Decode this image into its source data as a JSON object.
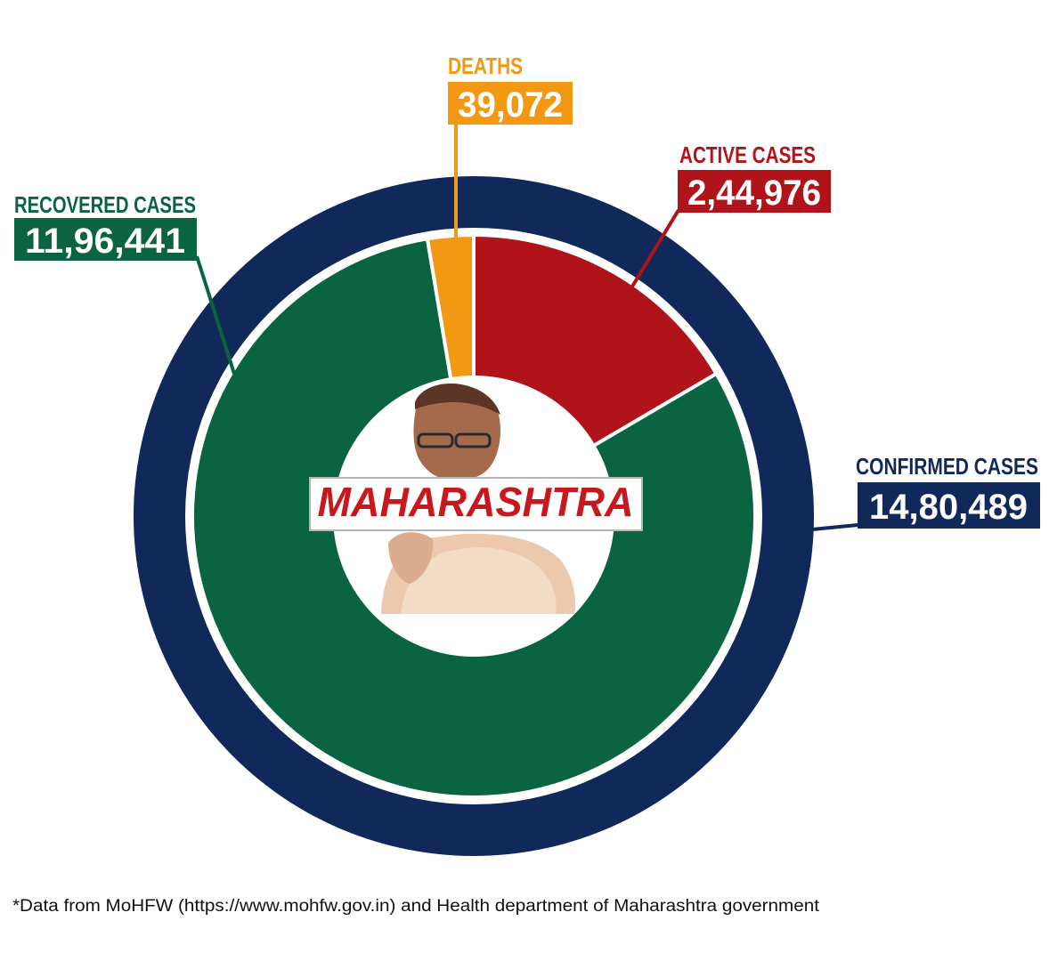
{
  "chart_data": {
    "type": "pie",
    "donut": true,
    "center_label": "MAHARASHTRA",
    "outer_ring": {
      "label": "CONFIRMED CASES",
      "value": 1480489,
      "display": "14,80,489"
    },
    "slices": [
      {
        "key": "deaths",
        "label": "DEATHS",
        "value": 39072,
        "display": "39,072"
      },
      {
        "key": "active",
        "label": "ACTIVE CASES",
        "value": 244976,
        "display": "2,44,976"
      },
      {
        "key": "recovered",
        "label": "RECOVERED CASES",
        "value": 1196441,
        "display": "11,96,441"
      }
    ],
    "footnote": "*Data from MoHFW (https://www.mohfw.gov.in) and Health department of Maharashtra government"
  },
  "colors": {
    "confirmed": "#10285a",
    "recovered": "#0a6341",
    "active": "#b01319",
    "deaths": "#f29812",
    "center_label": "#c8171d"
  },
  "icons": {
    "center_photo": "person-portrait-icon"
  }
}
